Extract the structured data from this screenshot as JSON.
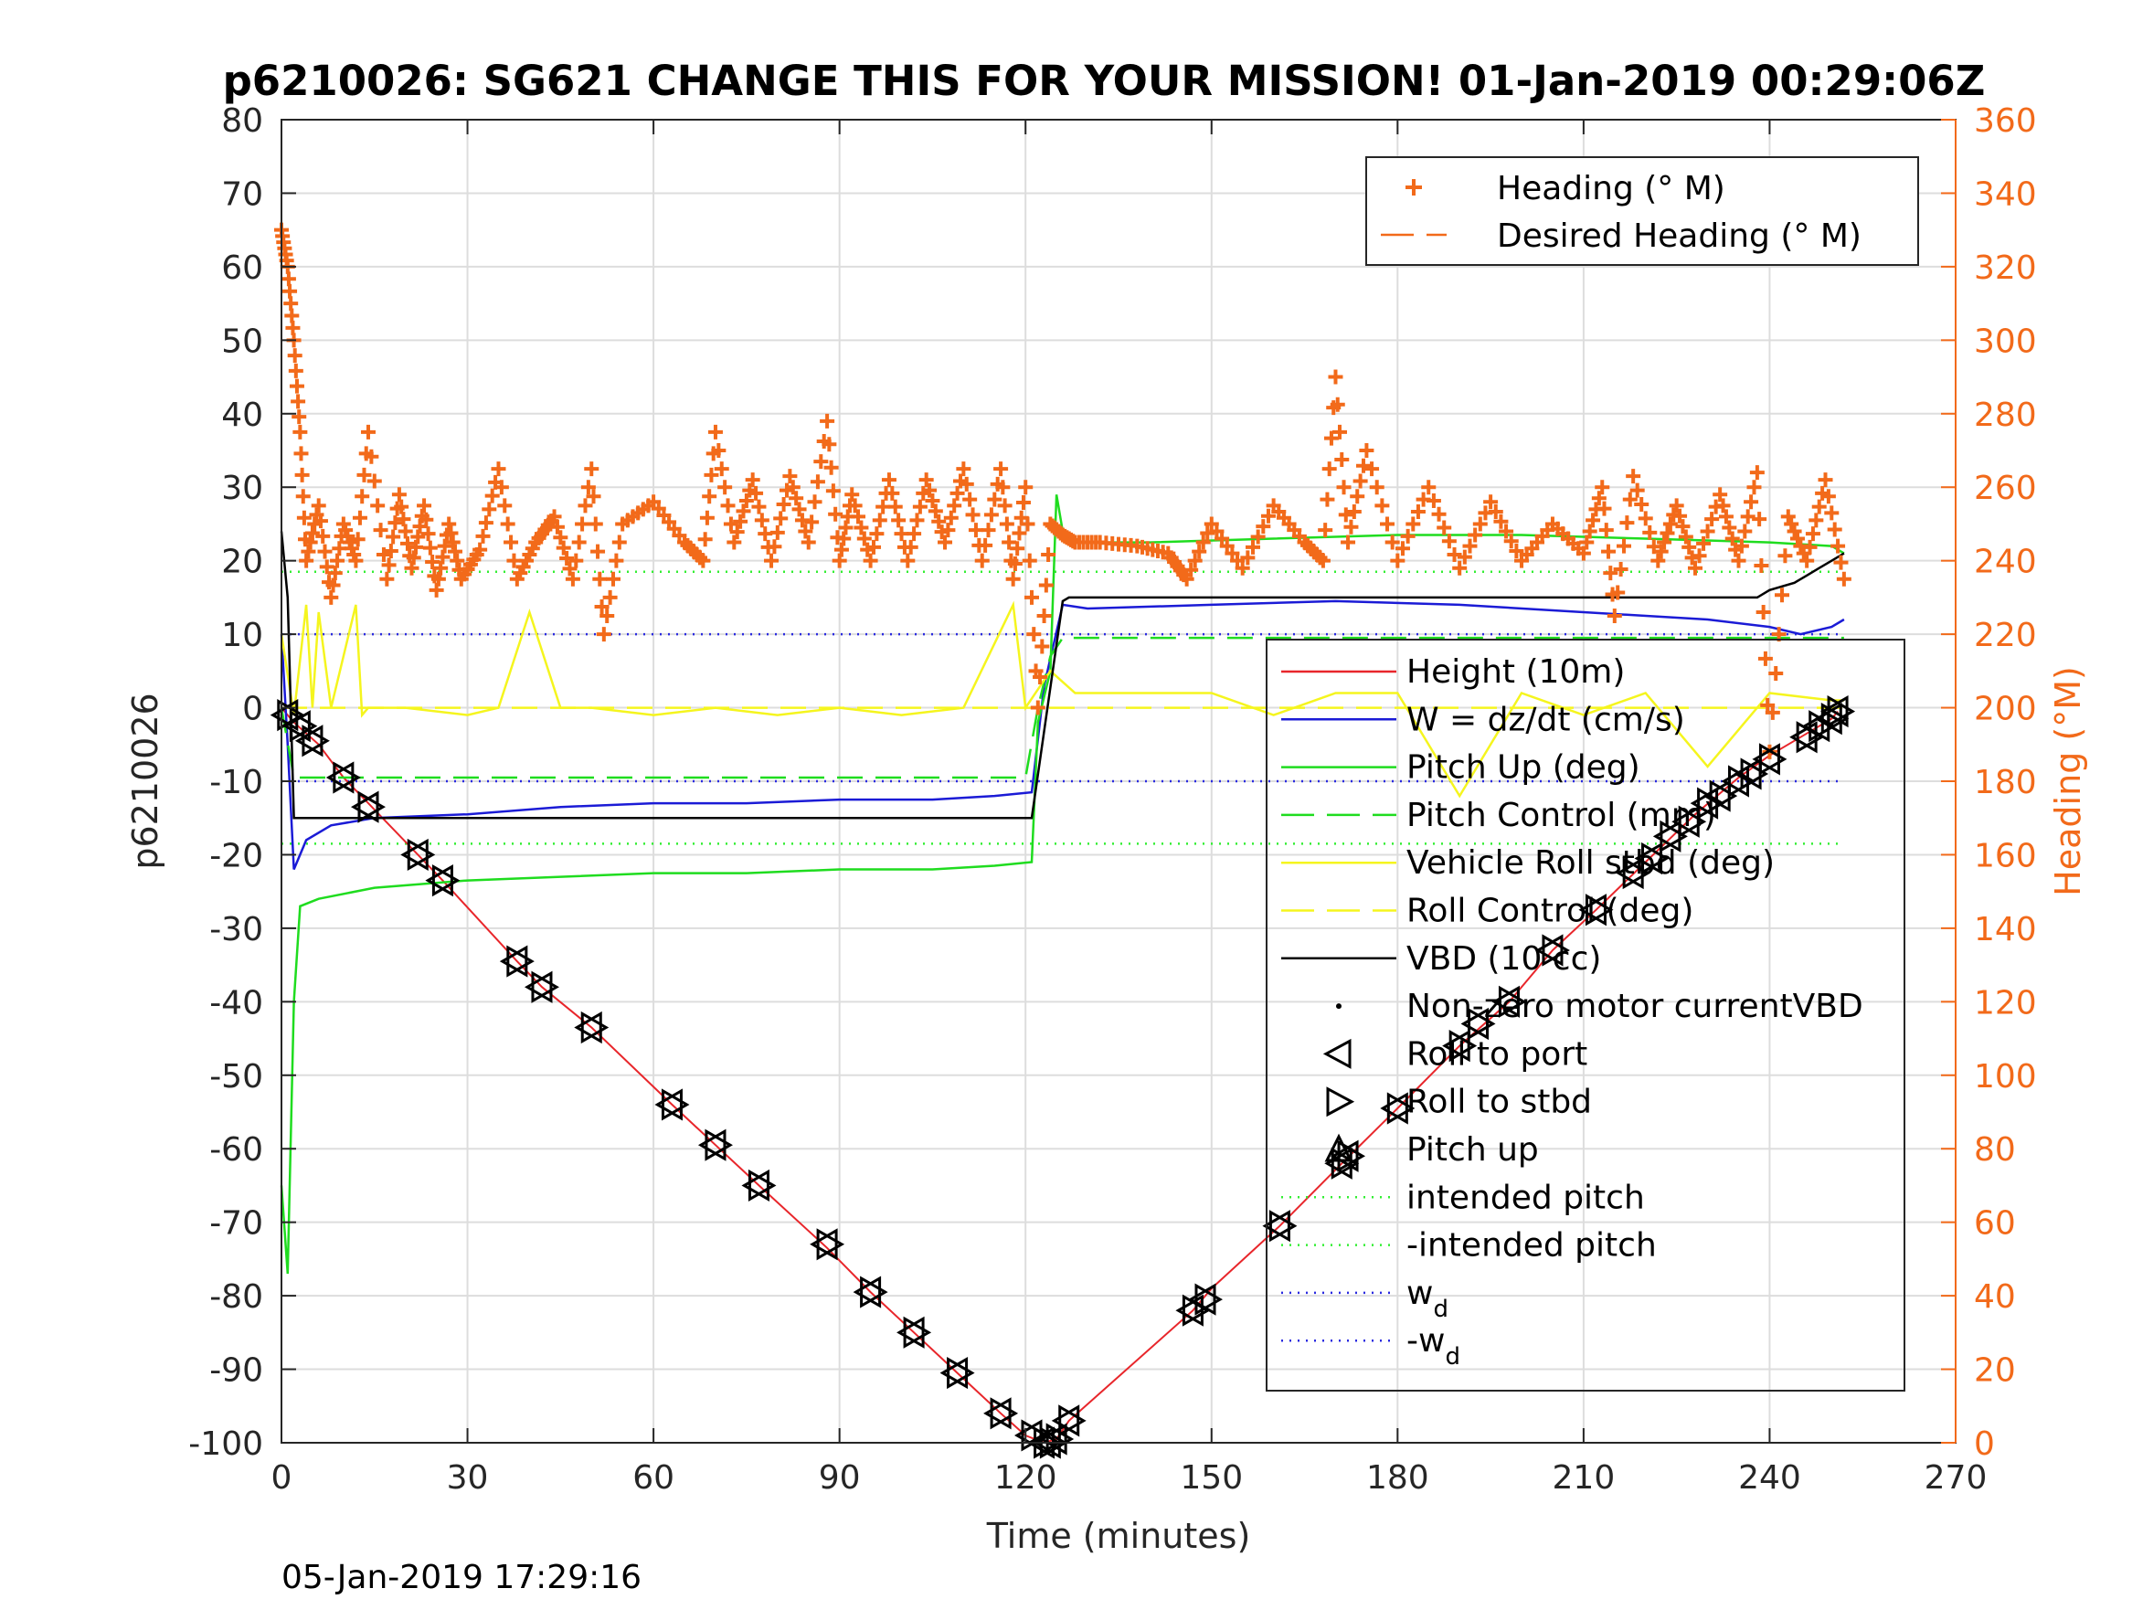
{
  "chart_data": {
    "type": "line",
    "title": "p6210026: SG621 CHANGE THIS FOR YOUR MISSION! 01-Jan-2019 00:29:06Z",
    "xlabel": "Time (minutes)",
    "ylabel": "p6210026",
    "ylabel_right": "Heading (°M)",
    "xlim": [
      0,
      270
    ],
    "ylim": [
      -100,
      80
    ],
    "ylim_right": [
      0,
      360
    ],
    "x_ticks": [
      0,
      30,
      60,
      90,
      120,
      150,
      180,
      210,
      240,
      270
    ],
    "y_ticks": [
      -100,
      -90,
      -80,
      -70,
      -60,
      -50,
      -40,
      -30,
      -20,
      -10,
      0,
      10,
      20,
      30,
      40,
      50,
      60,
      70,
      80
    ],
    "y_ticks_right": [
      0,
      20,
      40,
      60,
      80,
      100,
      120,
      140,
      160,
      180,
      200,
      220,
      240,
      260,
      280,
      300,
      320,
      340,
      360
    ],
    "grid": true,
    "footer": "05-Jan-2019 17:29:16",
    "legend_top": {
      "placement": "top-right",
      "entries": [
        {
          "label": "Heading (° M)",
          "color": "#f26a1a",
          "style": "plus"
        },
        {
          "label": "Desired Heading (° M)",
          "color": "#f26a1a",
          "style": "dash"
        }
      ]
    },
    "legend_bottom": {
      "placement": "right",
      "entries": [
        {
          "label": "Height (10m)",
          "color": "#e8262b",
          "style": "solid"
        },
        {
          "label": "W = dz/dt (cm/s)",
          "color": "#1b1bd6",
          "style": "solid"
        },
        {
          "label": "Pitch Up (deg)",
          "color": "#1fdc1f",
          "style": "solid"
        },
        {
          "label": "Pitch Control (mm)",
          "color": "#1fdc1f",
          "style": "dash"
        },
        {
          "label": "Vehicle Roll stbd (deg)",
          "color": "#f5f51e",
          "style": "solid"
        },
        {
          "label": "Roll Control (deg)",
          "color": "#f5f51e",
          "style": "dash"
        },
        {
          "label": "VBD (10 cc)",
          "color": "#000000",
          "style": "solid"
        },
        {
          "label": "Non-zero motor currentVBD",
          "color": "#000000",
          "style": "dot"
        },
        {
          "label": "Roll to port",
          "color": "#000000",
          "style": "tri-left"
        },
        {
          "label": "Roll to stbd",
          "color": "#000000",
          "style": "tri-right"
        },
        {
          "label": "Pitch up",
          "color": "#000000",
          "style": "tri-up"
        },
        {
          "label": "intended pitch",
          "color": "#33ee33",
          "style": "dotted"
        },
        {
          "label": "-intended pitch",
          "color": "#33ee33",
          "style": "dotted"
        },
        {
          "label": "w",
          "sub": "d",
          "color": "#2a2ae0",
          "style": "dotted"
        },
        {
          "label": "-w",
          "sub": "d",
          "color": "#2a2ae0",
          "style": "dotted"
        }
      ]
    },
    "series": [
      {
        "name": "Height (10m)",
        "axis": "left",
        "color": "#e8262b",
        "x": [
          0,
          2,
          6,
          10,
          14,
          22,
          26,
          38,
          42,
          50,
          63,
          70,
          77,
          88,
          95,
          102,
          109,
          116,
          120,
          123,
          125,
          127,
          147,
          150,
          161,
          171,
          180,
          190,
          198,
          205,
          212,
          220,
          228,
          235,
          240,
          246,
          250,
          251
        ],
        "y": [
          0,
          -2,
          -5,
          -9.5,
          -13,
          -20,
          -23.5,
          -34.5,
          -38,
          -43.5,
          -54,
          -59.5,
          -65,
          -73.5,
          -79.5,
          -85,
          -90.5,
          -96,
          -99,
          -100,
          -99.5,
          -97,
          -82,
          -79,
          -70.5,
          -62,
          -54.5,
          -46,
          -40,
          -33,
          -27.5,
          -21,
          -14.5,
          -9.5,
          -6.5,
          -3.5,
          -1.5,
          -0.5
        ]
      },
      {
        "name": "W = dz/dt (cm/s)",
        "axis": "left",
        "color": "#1b1bd6",
        "x": [
          0,
          1,
          2,
          4,
          8,
          15,
          30,
          45,
          60,
          75,
          90,
          105,
          115,
          121,
          123,
          126,
          130,
          150,
          170,
          190,
          210,
          230,
          240,
          245,
          250,
          252
        ],
        "y": [
          10,
          -5,
          -22,
          -18,
          -16,
          -15,
          -14.5,
          -13.5,
          -13,
          -13,
          -12.5,
          -12.5,
          -12,
          -11.5,
          3,
          14,
          13.5,
          14,
          14.5,
          14,
          13,
          12,
          11,
          10,
          11,
          12
        ]
      },
      {
        "name": "Pitch Up (deg)",
        "axis": "left",
        "color": "#1fdc1f",
        "x": [
          0,
          1,
          2,
          3,
          6,
          15,
          30,
          45,
          60,
          75,
          90,
          105,
          115,
          121,
          122,
          124,
          125,
          126,
          128,
          140,
          160,
          180,
          200,
          220,
          240,
          250,
          252
        ],
        "y": [
          -65,
          -77,
          -40,
          -27,
          -26,
          -24.5,
          -23.5,
          -23,
          -22.5,
          -22.5,
          -22,
          -22,
          -21.5,
          -21,
          -2,
          5,
          29,
          24,
          22.5,
          22.5,
          23,
          23.5,
          23.5,
          23,
          22.5,
          22,
          21
        ]
      },
      {
        "name": "Pitch Control (mm)",
        "axis": "left",
        "color": "#1fdc1f",
        "dash": true,
        "x": [
          0,
          2,
          120,
          122,
          124,
          126,
          252
        ],
        "y": [
          0,
          -9.5,
          -9.5,
          0,
          7,
          9.5,
          9.5
        ]
      },
      {
        "name": "Vehicle Roll stbd (deg)",
        "axis": "left",
        "color": "#f5f51e",
        "x": [
          0,
          2,
          4,
          5,
          6,
          8,
          12,
          13,
          14,
          20,
          30,
          35,
          40,
          45,
          50,
          60,
          70,
          80,
          90,
          100,
          110,
          118,
          120,
          124,
          128,
          140,
          150,
          160,
          170,
          180,
          190,
          200,
          210,
          220,
          230,
          240,
          250,
          252
        ],
        "y": [
          10,
          -1,
          14,
          0,
          13,
          0,
          14,
          -1,
          0,
          0,
          -1,
          0,
          13,
          0,
          0,
          -1,
          0,
          -1,
          0,
          -1,
          0,
          14,
          0,
          5,
          2,
          2,
          2,
          -1,
          2,
          2,
          -12,
          2,
          -1,
          2,
          -8,
          2,
          1,
          1
        ]
      },
      {
        "name": "Roll Control (deg)",
        "axis": "left",
        "color": "#f5f51e",
        "dash": true,
        "x": [
          0,
          120,
          125,
          252
        ],
        "y": [
          0,
          0,
          0,
          0
        ]
      },
      {
        "name": "VBD (10 cc)",
        "axis": "left",
        "color": "#000000",
        "x": [
          0,
          1,
          2,
          121,
          126,
          127,
          238,
          240,
          244,
          246,
          248,
          250,
          252
        ],
        "y": [
          24,
          15,
          -15,
          -15,
          14.5,
          15,
          15,
          16,
          17,
          18,
          19,
          20,
          21
        ]
      },
      {
        "name": "Heading (° M)",
        "axis": "right",
        "color": "#f26a1a",
        "x": [
          0,
          1,
          2,
          3,
          4,
          6,
          8,
          10,
          12,
          14,
          17,
          19,
          21,
          23,
          25,
          27,
          29,
          32,
          35,
          38,
          41,
          44,
          47,
          50,
          52,
          55,
          60,
          65,
          68,
          70,
          73,
          76,
          79,
          82,
          85,
          88,
          90,
          92,
          95,
          98,
          101,
          104,
          107,
          110,
          113,
          116,
          118,
          120,
          122,
          124,
          126,
          128,
          132,
          138,
          143,
          146,
          150,
          155,
          160,
          165,
          168,
          170,
          172,
          175,
          180,
          185,
          190,
          195,
          200,
          205,
          210,
          213,
          215,
          218,
          222,
          225,
          228,
          232,
          235,
          238,
          240,
          243,
          246,
          249,
          252
        ],
        "y": [
          330,
          320,
          300,
          275,
          240,
          255,
          230,
          250,
          240,
          275,
          235,
          258,
          238,
          255,
          232,
          250,
          235,
          243,
          265,
          235,
          245,
          252,
          235,
          265,
          220,
          250,
          256,
          245,
          240,
          275,
          245,
          262,
          240,
          263,
          245,
          278,
          240,
          258,
          240,
          262,
          240,
          262,
          245,
          265,
          240,
          265,
          235,
          260,
          200,
          250,
          247,
          245,
          245,
          244,
          242,
          235,
          250,
          238,
          255,
          245,
          240,
          290,
          245,
          270,
          240,
          260,
          238,
          256,
          240,
          250,
          242,
          260,
          225,
          263,
          240,
          255,
          238,
          258,
          240,
          264,
          188,
          252,
          240,
          262,
          235
        ]
      }
    ],
    "reference_lines": [
      {
        "name": "intended pitch",
        "y": 18.5,
        "color": "#33ee33",
        "x": [
          0,
          252
        ]
      },
      {
        "name": "-intended pitch",
        "y": -18.5,
        "color": "#33ee33",
        "x": [
          0,
          252
        ]
      },
      {
        "name": "w_d",
        "y": 10,
        "color": "#2a2ae0",
        "x": [
          0,
          252
        ]
      },
      {
        "name": "-w_d",
        "y": -10,
        "color": "#2a2ae0",
        "x": [
          0,
          252
        ]
      }
    ],
    "markers": {
      "x": [
        1,
        3,
        5,
        10,
        14,
        22,
        26,
        38,
        42,
        50,
        63,
        70,
        77,
        88,
        95,
        102,
        109,
        116,
        121,
        123,
        124,
        125,
        127,
        147,
        149,
        161,
        171,
        172,
        180,
        190,
        193,
        198,
        205,
        212,
        218,
        221,
        224,
        227,
        230,
        232,
        235,
        237,
        240,
        246,
        248,
        250,
        251
      ],
      "y": [
        -1,
        -2.5,
        -4.5,
        -9.5,
        -13.5,
        -20,
        -23.5,
        -34.5,
        -38,
        -43.5,
        -54,
        -59.5,
        -65,
        -73,
        -79.5,
        -85,
        -90.5,
        -96,
        -99,
        -100,
        -100,
        -99.5,
        -97,
        -82,
        -80.5,
        -70.5,
        -62,
        -61,
        -54.5,
        -46,
        -43,
        -40,
        -33,
        -27.5,
        -22.5,
        -20.5,
        -17.5,
        -15.5,
        -13,
        -12,
        -10,
        -9,
        -7,
        -4,
        -2.5,
        -1.5,
        -0.5
      ]
    }
  }
}
